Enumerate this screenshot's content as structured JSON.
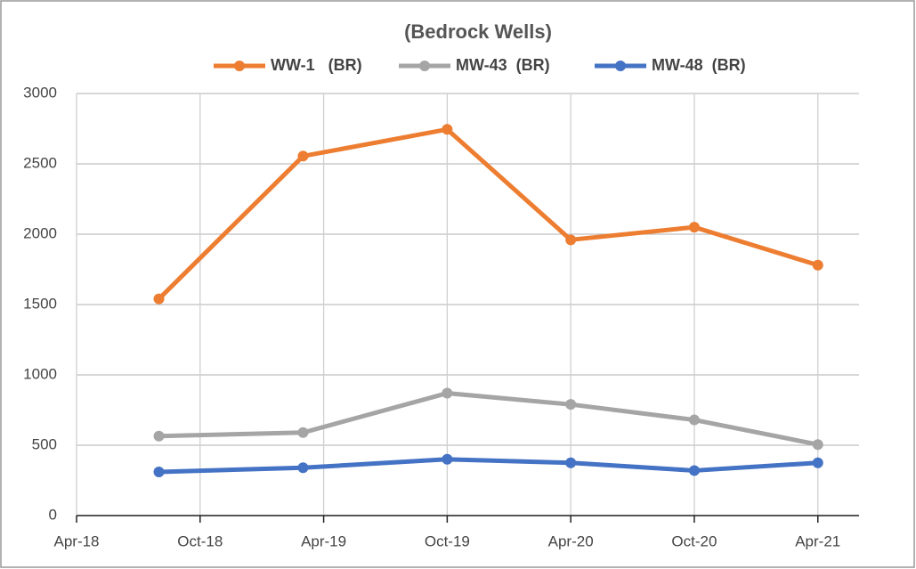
{
  "chart_data": {
    "type": "line",
    "title": "(Bedrock Wells)",
    "x": [
      "2018-08",
      "2019-03",
      "2019-10",
      "2020-04",
      "2020-10",
      "2021-04"
    ],
    "series": [
      {
        "name": "WW-1   (BR)",
        "color": "#ED7D31",
        "values": [
          1540,
          2555,
          2745,
          1960,
          2050,
          1780
        ]
      },
      {
        "name": "MW-43  (BR)",
        "color": "#A5A5A5",
        "values": [
          565,
          590,
          870,
          790,
          680,
          505
        ]
      },
      {
        "name": "MW-48  (BR)",
        "color": "#4472C4",
        "values": [
          310,
          340,
          400,
          375,
          320,
          375
        ]
      }
    ],
    "xlim": [
      "2018-04",
      "2021-06"
    ],
    "xticks": [
      {
        "value": "2018-04",
        "label": "Apr-18"
      },
      {
        "value": "2018-10",
        "label": "Oct-18"
      },
      {
        "value": "2019-04",
        "label": "Apr-19"
      },
      {
        "value": "2019-10",
        "label": "Oct-19"
      },
      {
        "value": "2020-04",
        "label": "Apr-20"
      },
      {
        "value": "2020-10",
        "label": "Oct-20"
      },
      {
        "value": "2021-04",
        "label": "Apr-21"
      }
    ],
    "ylim": [
      0,
      3000
    ],
    "yticks": [
      0,
      500,
      1000,
      1500,
      2000,
      2500,
      3000
    ],
    "grid": true,
    "legend": "top"
  }
}
